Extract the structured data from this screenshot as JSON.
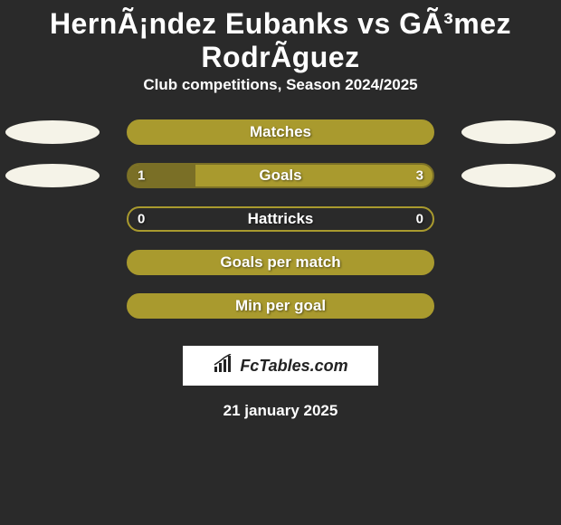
{
  "title": "HernÃ¡ndez Eubanks vs GÃ³mez RodrÃ­guez",
  "subtitle": "Club competitions, Season 2024/2025",
  "stats": [
    {
      "label": "Matches",
      "left_val": "",
      "right_val": "",
      "left_pct": 100,
      "right_pct": 0,
      "fill_color": "#a99a2e",
      "bg_color": "#a99a2e",
      "left_ellipse": "#f5f3e8",
      "right_ellipse": "#f5f3e8",
      "show_ellipses": true
    },
    {
      "label": "Goals",
      "left_val": "1",
      "right_val": "3",
      "left_pct": 22,
      "right_pct": 78,
      "fill_color": "#7a6f26",
      "bg_color": "#a99a2e",
      "left_ellipse": "#f5f3e8",
      "right_ellipse": "#f5f3e8",
      "show_ellipses": true
    },
    {
      "label": "Hattricks",
      "left_val": "0",
      "right_val": "0",
      "left_pct": 0,
      "right_pct": 0,
      "fill_color": "#a99a2e",
      "bg_color": "#2a2a2a",
      "left_ellipse": "",
      "right_ellipse": "",
      "show_ellipses": false
    },
    {
      "label": "Goals per match",
      "left_val": "",
      "right_val": "",
      "left_pct": 100,
      "right_pct": 0,
      "fill_color": "#a99a2e",
      "bg_color": "#a99a2e",
      "left_ellipse": "",
      "right_ellipse": "",
      "show_ellipses": false
    },
    {
      "label": "Min per goal",
      "left_val": "",
      "right_val": "",
      "left_pct": 100,
      "right_pct": 0,
      "fill_color": "#a99a2e",
      "bg_color": "#a99a2e",
      "left_ellipse": "",
      "right_ellipse": "",
      "show_ellipses": false
    }
  ],
  "brand": {
    "name": "FcTables.com",
    "icon_color": "#222222",
    "box_bg": "#ffffff"
  },
  "date": "21 january 2025",
  "colors": {
    "page_bg": "#2a2a2a",
    "text": "#ffffff"
  }
}
